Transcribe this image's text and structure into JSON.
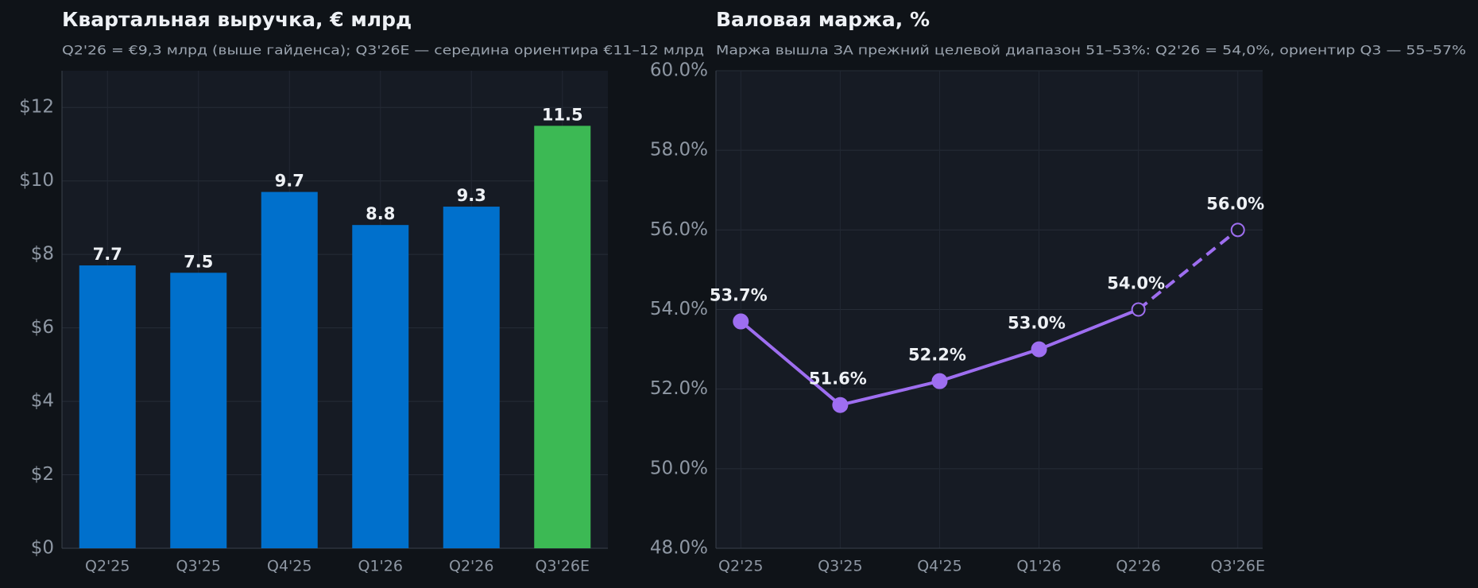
{
  "chart_data": [
    {
      "type": "bar",
      "title": "Квартальная выручка, € млрд",
      "subtitle": "Q2'26 = €9,3 млрд (выше гайденса); Q3'26E — середина ориентира €11–12 млрд",
      "categories": [
        "Q2'25",
        "Q3'25",
        "Q4'25",
        "Q1'26",
        "Q2'26",
        "Q3'26E"
      ],
      "values": [
        7.7,
        7.5,
        9.7,
        8.8,
        9.3,
        11.5
      ],
      "colors": [
        "#0070cc",
        "#0070cc",
        "#0070cc",
        "#0070cc",
        "#0070cc",
        "#3cb954"
      ],
      "ylim": [
        0,
        13
      ],
      "yticks": [
        {
          "value": 0,
          "label": "$0"
        },
        {
          "value": 2,
          "label": "$2"
        },
        {
          "value": 4,
          "label": "$4"
        },
        {
          "value": 6,
          "label": "$6"
        },
        {
          "value": 8,
          "label": "$8"
        },
        {
          "value": 10,
          "label": "$10"
        },
        {
          "value": 12,
          "label": "$12"
        }
      ],
      "grid": true
    },
    {
      "type": "line",
      "title": "Валовая маржа, %",
      "subtitle": "Маржа вышла ЗА прежний целевой диапазон 51–53%: Q2'26 = 54,0%, ориентир Q3 — 55–57%",
      "categories": [
        "Q2'25",
        "Q3'25",
        "Q4'25",
        "Q1'26",
        "Q2'26",
        "Q3'26E"
      ],
      "values": [
        53.7,
        51.6,
        52.2,
        53.0,
        54.0,
        56.0
      ],
      "value_labels": [
        "53.7%",
        "51.6%",
        "52.2%",
        "53.0%",
        "54.0%",
        "56.0%"
      ],
      "color": "#9e6ef0",
      "dashed_from": 4,
      "ylim": [
        48,
        60
      ],
      "yticks": [
        {
          "value": 48,
          "label": "48.0%"
        },
        {
          "value": 50,
          "label": "50.0%"
        },
        {
          "value": 52,
          "label": "52.0%"
        },
        {
          "value": 54,
          "label": "54.0%"
        },
        {
          "value": 56,
          "label": "56.0%"
        },
        {
          "value": 58,
          "label": "58.0%"
        },
        {
          "value": 60,
          "label": "60.0%"
        }
      ],
      "grid": true
    }
  ]
}
